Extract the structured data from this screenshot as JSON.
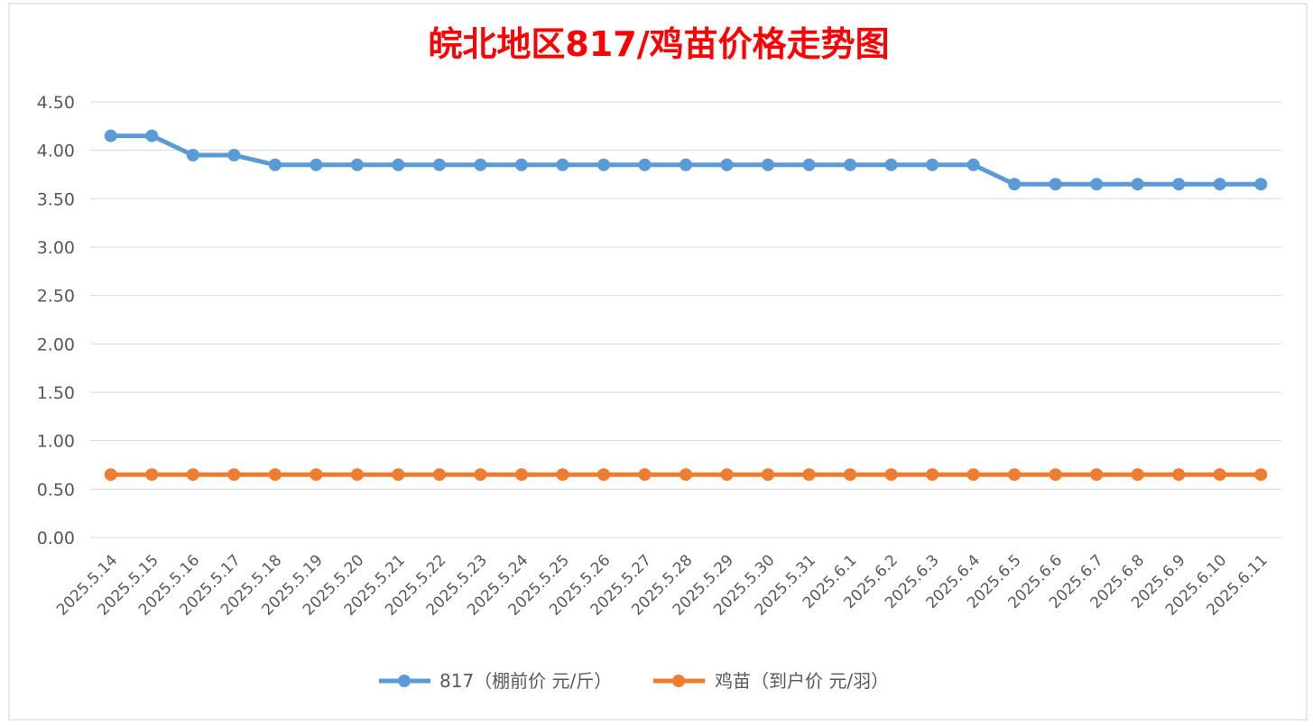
{
  "chart_data": {
    "type": "line",
    "title": "皖北地区817/鸡苗价格走势图",
    "title_color": "#FF0000",
    "xlabel": "",
    "ylabel": "",
    "ylim": [
      0,
      4.5
    ],
    "ytick_step": 0.5,
    "grid": true,
    "legend_position": "bottom",
    "categories": [
      "2025.5.14",
      "2025.5.15",
      "2025.5.16",
      "2025.5.17",
      "2025.5.18",
      "2025.5.19",
      "2025.5.20",
      "2025.5.21",
      "2025.5.22",
      "2025.5.23",
      "2025.5.24",
      "2025.5.25",
      "2025.5.26",
      "2025.5.27",
      "2025.5.28",
      "2025.5.29",
      "2025.5.30",
      "2025.5.31",
      "2025.6.1",
      "2025.6.2",
      "2025.6.3",
      "2025.6.4",
      "2025.6.5",
      "2025.6.6",
      "2025.6.7",
      "2025.6.8",
      "2025.6.9",
      "2025.6.10",
      "2025.6.11"
    ],
    "series": [
      {
        "name": "817（棚前价 元/斤）",
        "color": "#5B9BD5",
        "values": [
          4.15,
          4.15,
          3.95,
          3.95,
          3.85,
          3.85,
          3.85,
          3.85,
          3.85,
          3.85,
          3.85,
          3.85,
          3.85,
          3.85,
          3.85,
          3.85,
          3.85,
          3.85,
          3.85,
          3.85,
          3.85,
          3.85,
          3.65,
          3.65,
          3.65,
          3.65,
          3.65,
          3.65,
          3.65
        ]
      },
      {
        "name": "鸡苗（到户价 元/羽）",
        "color": "#ED7D31",
        "values": [
          0.65,
          0.65,
          0.65,
          0.65,
          0.65,
          0.65,
          0.65,
          0.65,
          0.65,
          0.65,
          0.65,
          0.65,
          0.65,
          0.65,
          0.65,
          0.65,
          0.65,
          0.65,
          0.65,
          0.65,
          0.65,
          0.65,
          0.65,
          0.65,
          0.65,
          0.65,
          0.65,
          0.65,
          0.65
        ]
      }
    ]
  }
}
